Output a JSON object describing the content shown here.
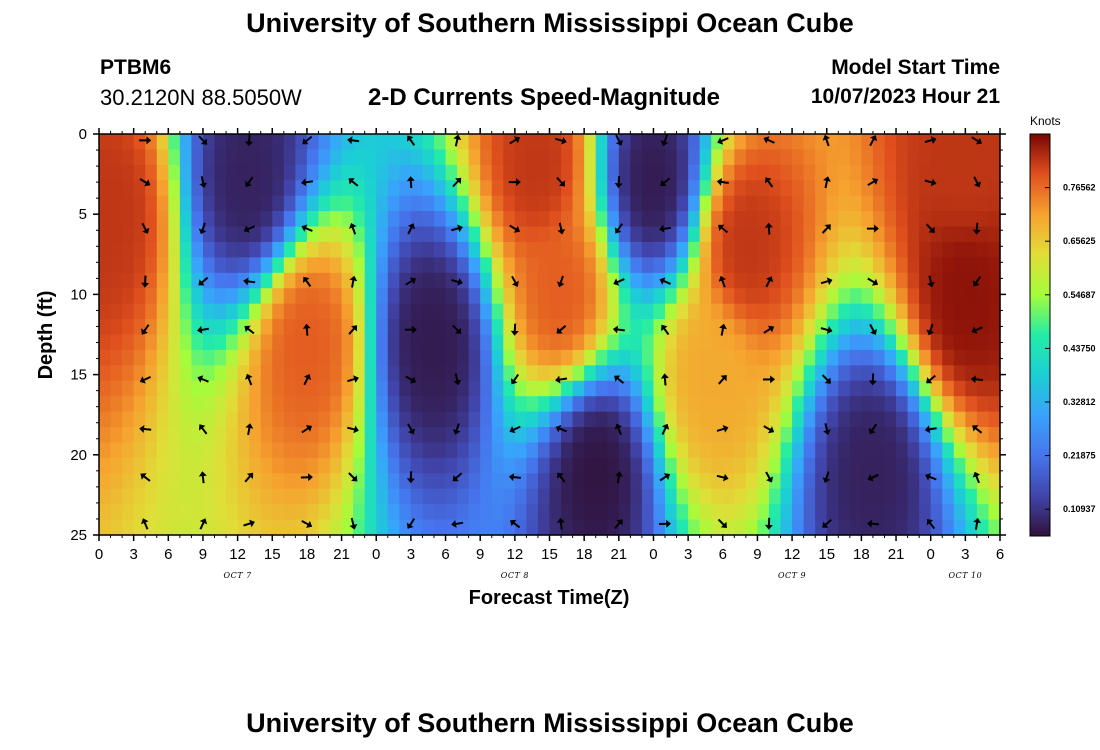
{
  "header": {
    "title": "University of Southern Mississippi Ocean Cube",
    "station": "PTBM6",
    "coordinates": "30.2120N  88.5050W",
    "subtitle": "2-D Currents Speed-Magnitude",
    "model_start_label": "Model Start Time",
    "model_start_time": "10/07/2023 Hour 21"
  },
  "footer": {
    "title": "University of Southern Mississippi Ocean Cube"
  },
  "chart_data": {
    "type": "heatmap",
    "title": "2-D Currents Speed-Magnitude",
    "xlabel": "Forecast Time(Z)",
    "ylabel": "Depth (ft)",
    "xlim": [
      0,
      78
    ],
    "ylim": [
      0,
      25
    ],
    "y_ticks": [
      "0",
      "5",
      "10",
      "15",
      "20",
      "25"
    ],
    "x_ticks": [
      "0",
      "3",
      "6",
      "9",
      "12",
      "15",
      "18",
      "21",
      "0",
      "3",
      "6",
      "9",
      "12",
      "15",
      "18",
      "21",
      "0",
      "3",
      "6",
      "9",
      "12",
      "15",
      "18",
      "21",
      "0",
      "3",
      "6"
    ],
    "date_labels": [
      {
        "label": "OCT 7",
        "hour": 12
      },
      {
        "label": "OCT 8",
        "hour": 36
      },
      {
        "label": "OCT 9",
        "hour": 60
      },
      {
        "label": "OCT 10",
        "hour": 75
      }
    ],
    "colorbar": {
      "units": "Knots",
      "min": 0.0547,
      "max": 0.875,
      "ticks": [
        "0.10937",
        "0.21875",
        "0.32812",
        "0.43750",
        "0.54687",
        "0.65625",
        "0.76562"
      ],
      "tick_values": [
        0.10937,
        0.21875,
        0.32812,
        0.4375,
        0.54687,
        0.65625,
        0.76562
      ]
    },
    "speed_features_knots": [
      {
        "t": 1,
        "d": 5,
        "v": 0.82
      },
      {
        "t": 13,
        "d": 3,
        "v": 0.08
      },
      {
        "t": 18,
        "d": 13,
        "v": 0.78
      },
      {
        "t": 29,
        "d": 13,
        "v": 0.07
      },
      {
        "t": 38,
        "d": 2,
        "v": 0.82
      },
      {
        "t": 40,
        "d": 10,
        "v": 0.78
      },
      {
        "t": 43,
        "d": 21,
        "v": 0.06
      },
      {
        "t": 48,
        "d": 3,
        "v": 0.07
      },
      {
        "t": 56,
        "d": 7,
        "v": 0.82
      },
      {
        "t": 53,
        "d": 15,
        "v": 0.7
      },
      {
        "t": 67,
        "d": 21,
        "v": 0.08
      },
      {
        "t": 75,
        "d": 10,
        "v": 0.86
      },
      {
        "t": 75,
        "d": 2,
        "v": 0.82
      }
    ]
  }
}
